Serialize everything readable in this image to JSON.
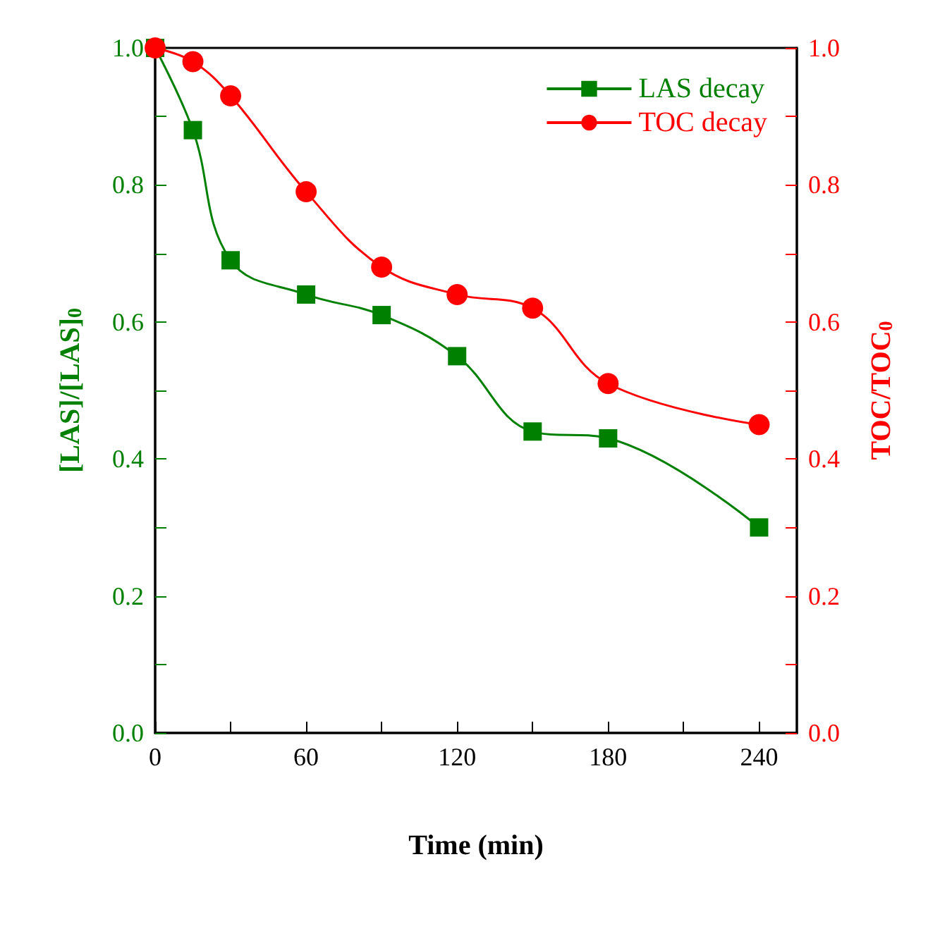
{
  "chart_data": {
    "type": "line",
    "xlabel": "Time (min)",
    "ylabel": "[LAS]/[LAS]$_{0}$",
    "y2label": "TOC/TOC$_{0}$",
    "xlim": [
      0,
      255
    ],
    "xticks": [
      0,
      {
        "value": 30,
        "label": null
      },
      60,
      {
        "value": 90,
        "label": null
      },
      120,
      {
        "value": 150,
        "label": null
      },
      180,
      {
        "value": 210,
        "label": null
      },
      240
    ],
    "ylim": [
      0,
      1
    ],
    "yticks": [
      "0.0",
      {
        "value": 0.1,
        "label": null
      },
      0.2,
      {
        "value": 0.3,
        "label": null
      },
      0.4,
      {
        "value": 0.5,
        "label": null
      },
      0.6,
      {
        "value": 0.7,
        "label": null
      },
      0.8,
      {
        "value": 0.9,
        "label": null
      },
      "1.0"
    ],
    "y2lim": [
      0,
      1
    ],
    "y2ticks": [
      "0.0",
      {
        "value": 0.1,
        "label": null
      },
      0.2,
      {
        "value": 0.3,
        "label": null
      },
      0.4,
      {
        "value": 0.5,
        "label": null
      },
      0.6,
      {
        "value": 0.7,
        "label": null
      },
      0.8,
      {
        "value": 0.9,
        "label": null
      },
      "1.0"
    ],
    "x": [
      0,
      15,
      30,
      60,
      90,
      120,
      150,
      180,
      240
    ],
    "series": [
      {
        "name": "LAS decay",
        "color": "#008000",
        "marker": "square",
        "values": [
          1.0,
          0.88,
          0.69,
          0.64,
          0.61,
          0.55,
          0.44,
          0.43,
          0.3
        ]
      },
      {
        "name": "TOC decay",
        "color": "#ff0000",
        "marker": "circle",
        "axis": "y2",
        "values": [
          1.0,
          0.98,
          0.93,
          0.79,
          0.68,
          0.64,
          0.62,
          0.51,
          0.45
        ]
      }
    ],
    "legend": "top right",
    "grid": false
  }
}
